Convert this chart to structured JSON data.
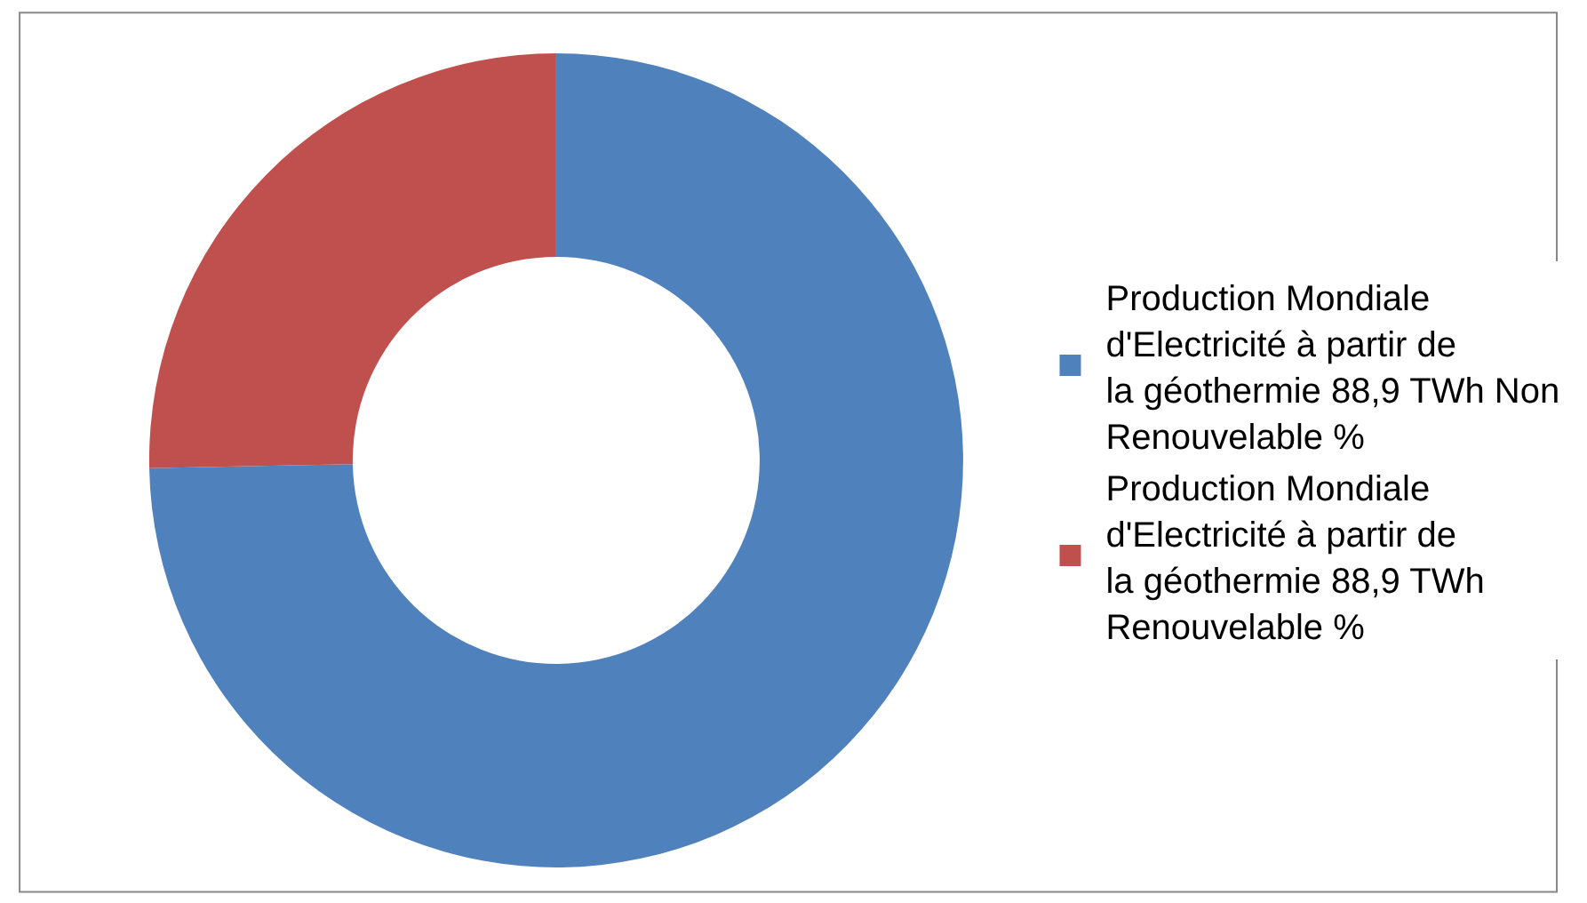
{
  "chart_data": {
    "type": "donut",
    "categories": [
      "Production Mondiale d'Electricité à partir de la géothermie 88,9 TWh Non Renouvelable %",
      "Production Mondiale d'Electricité à partir de la géothermie 88,9 TWh Renouvelable %"
    ],
    "values": [
      74.7,
      25.3
    ],
    "colors": [
      "#4f81bd",
      "#c0504d"
    ],
    "legend": "right"
  }
}
